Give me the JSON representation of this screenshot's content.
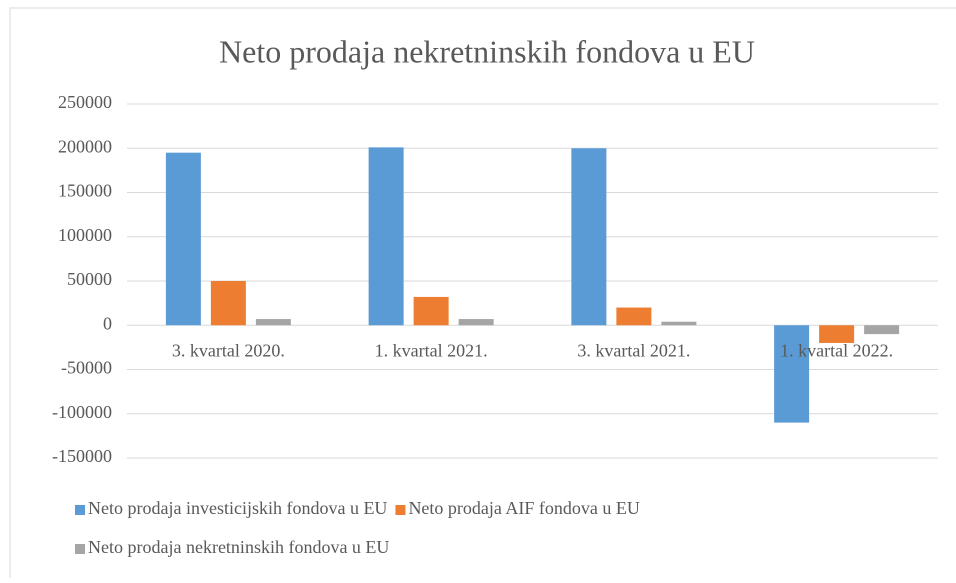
{
  "chart_data": {
    "type": "bar",
    "title": "Neto prodaja nekretninskih fondova u EU",
    "categories": [
      "3. kvartal 2020.",
      "1. kvartal 2021.",
      "3. kvartal 2021.",
      "1. kvartal 2022."
    ],
    "series": [
      {
        "name": "Neto prodaja investicijskih fondova u EU",
        "color": "#5b9bd5",
        "values": [
          195000,
          201000,
          200000,
          -110000
        ]
      },
      {
        "name": "Neto prodaja AIF fondova u EU",
        "color": "#ed7d31",
        "values": [
          50000,
          32000,
          20000,
          -20000
        ]
      },
      {
        "name": "Neto prodaja nekretninskih fondova u EU",
        "color": "#a5a5a5",
        "values": [
          7000,
          7000,
          4000,
          -10000
        ]
      }
    ],
    "ylim": [
      -150000,
      250000
    ],
    "yticks": [
      -150000,
      -100000,
      -50000,
      0,
      50000,
      100000,
      150000,
      200000,
      250000
    ],
    "grid": true
  }
}
